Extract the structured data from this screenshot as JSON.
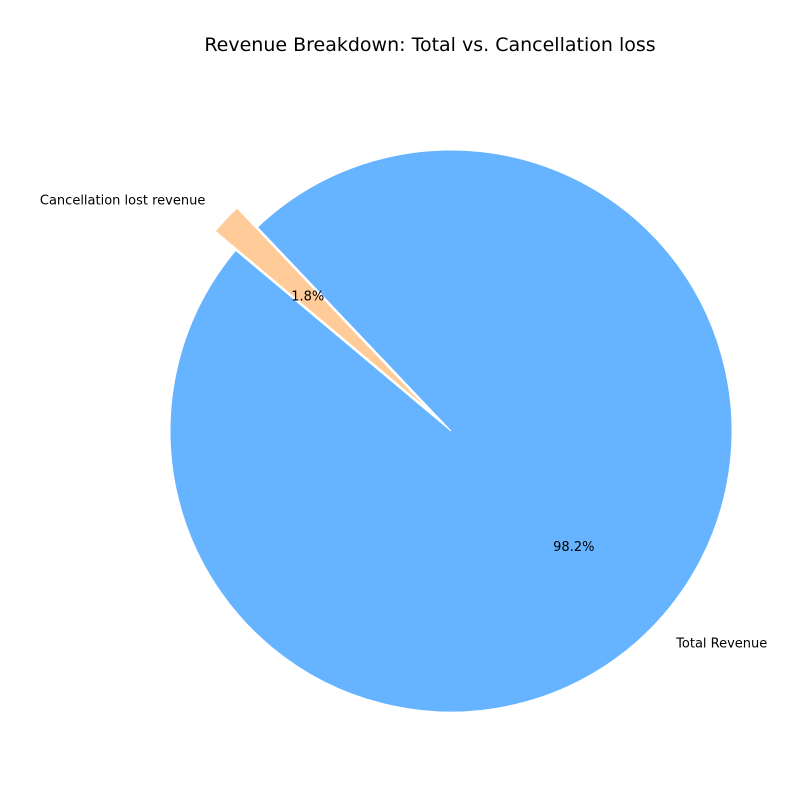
{
  "chart_data": {
    "type": "pie",
    "title": "Revenue Breakdown: Total vs. Cancellation loss",
    "slices": [
      {
        "label": "Total Revenue",
        "percent": 98.2,
        "percent_label": "98.2%",
        "color": "#66b3ff",
        "exploded": false
      },
      {
        "label": "Cancellation lost revenue",
        "percent": 1.8,
        "percent_label": "1.8%",
        "color": "#ffcc99",
        "exploded": true
      }
    ],
    "start_angle_deg": 140,
    "direction": "counterclockwise",
    "legend": "none"
  }
}
